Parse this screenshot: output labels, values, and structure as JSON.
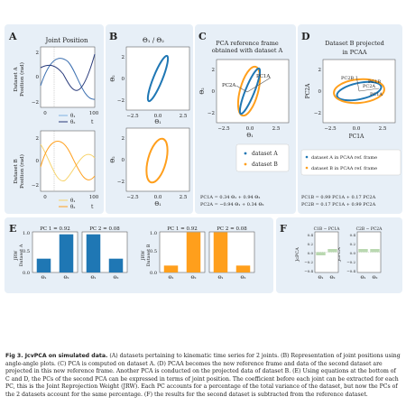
{
  "colors": {
    "blue": "#1f77b4",
    "orange": "#ff9f1c",
    "panel_bg": "#e7eff7",
    "navy": "#283a7a",
    "light_blue": "#7fb2e0",
    "light_orange": "#f7d36a",
    "green": "#b9d8b0"
  },
  "panels": {
    "A": {
      "letter": "A",
      "title": "Joint Position",
      "ylabel_a1": "Dataset A",
      "ylabel_a2": "Position (rad)",
      "ylabel_b1": "Dataset B",
      "ylabel_b2": "Position (rad)",
      "xtick_0": "0",
      "xtick_100": "100",
      "ytick_2": "2",
      "ytick_0": "0",
      "ytick_m2": "−2",
      "legend_1": "θ₁",
      "legend_2": "θ₂",
      "xlabel": "t"
    },
    "B": {
      "letter": "B",
      "title": "Θ₁ / Θ₂",
      "ylabel": "Θ₂",
      "xlabel": "Θ₁",
      "xticks": [
        "−2.5",
        "0.0",
        "2.5"
      ],
      "yticks": [
        "2",
        "0",
        "−2"
      ]
    },
    "C": {
      "letter": "C",
      "title_1": "PCA reference frame",
      "title_2": "obtained with dataset A",
      "pc1": "PC1A",
      "pc2": "PC2A",
      "ylabel": "Θ₂",
      "xlabel": "Θ₁",
      "xticks": [
        "−2.5",
        "0.0",
        "2.5"
      ],
      "yticks": [
        "2",
        "0",
        "−2"
      ],
      "legend_a": "dataset A",
      "legend_b": "dataset B",
      "eq1": "PC1A = 0.34 Θ₁ + 0.94 Θ₂",
      "eq2": "PC2A = −0.94 Θ₁ + 0.34 Θ₂"
    },
    "D": {
      "letter": "D",
      "title_1": "Dataset B projected",
      "title_2": "in PCAA",
      "ylabel": "PC2A",
      "xlabel": "PC1A",
      "xticks": [
        "−2.5",
        "0.0",
        "2.5"
      ],
      "yticks": [
        "2",
        "0",
        "−2"
      ],
      "lbl_pc2b": "PC2B",
      "lbl_pc1b": "PC1B",
      "lbl_pc2a": "PC2A",
      "lbl_pc1a": "PC1A",
      "legend_a": "dataset A in PCAA ref. frame",
      "legend_b": "dataset B in PCAA ref. frame",
      "eq1": "PC1B = 0.99 PC1A + 0.17 PC2A",
      "eq2": "PC2B = 0.17 PC1A + 0.99 PC2A"
    },
    "E": {
      "letter": "E",
      "ylabel_a1": "JRW",
      "ylabel_a2": "Dataset A",
      "ylabel_b1": "JRW",
      "ylabel_b2": "Dataset B",
      "yticks": [
        "1.0",
        "0.5",
        "0.0"
      ],
      "xticks": [
        "Θ₁",
        "Θ₂"
      ]
    },
    "F": {
      "letter": "F",
      "title_1": "C1B − PC1A",
      "title_2": "C2B − PC2A",
      "ylabel_1": "JcPCA",
      "ylabel_2": "JcPCA",
      "yticks": [
        "0.4",
        "0.2",
        "0.0",
        "−0.2",
        "−0.4"
      ],
      "xticks": [
        "Θ₁",
        "Θ₂"
      ]
    }
  },
  "chart_data": [
    {
      "type": "bar",
      "panel": "E",
      "title": "PC 1 = 0.92",
      "categories": [
        "Θ₁",
        "Θ₂"
      ],
      "values": [
        0.34,
        0.94
      ],
      "ylim": [
        0,
        1
      ],
      "color": "blue"
    },
    {
      "type": "bar",
      "panel": "E",
      "title": "PC 2 = 0.08",
      "categories": [
        "Θ₁",
        "Θ₂"
      ],
      "values": [
        0.94,
        0.34
      ],
      "ylim": [
        0,
        1
      ],
      "color": "blue"
    },
    {
      "type": "bar",
      "panel": "E",
      "title": "PC 1 = 0.92",
      "categories": [
        "Θ₁",
        "Θ₂"
      ],
      "values": [
        0.17,
        0.99
      ],
      "ylim": [
        0,
        1
      ],
      "color": "orange"
    },
    {
      "type": "bar",
      "panel": "E",
      "title": "PC 2 = 0.08",
      "categories": [
        "Θ₁",
        "Θ₂"
      ],
      "values": [
        0.99,
        0.17
      ],
      "ylim": [
        0,
        1
      ],
      "color": "orange"
    },
    {
      "type": "bar",
      "panel": "F",
      "title": "C1B − PC1A",
      "categories": [
        "Θ₁",
        "Θ₂"
      ],
      "values": [
        -0.07,
        0.07
      ],
      "ylim": [
        -0.45,
        0.45
      ],
      "color": "green"
    },
    {
      "type": "bar",
      "panel": "F",
      "title": "C2B − PC2A",
      "categories": [
        "Θ₁",
        "Θ₂"
      ],
      "values": [
        0.07,
        0.07
      ],
      "ylim": [
        -0.45,
        0.45
      ],
      "color": "green"
    }
  ],
  "caption": {
    "label": "Fig 3. JcvPCA on simulated data.",
    "text": " (A) datasets pertaining to kinematic time series for 2 joints. (B) Representation of joint positions using angle-angle plots. (C) PCA is computed on dataset A. (D) PCAA becomes the new reference frame and data of the second dataset are projected in this new reference frame. Another PCA is conducted on the projected data of dataset B. (E) Using equations at the bottom of C and D, the PCs of the second PCA can be expressed in terms of joint position. The coefficient before each joint can be extracted for each PC, this is the Joint Reprojection Weight (JRW). Each PC accounts for a percentage of the total variance of the dataset, but now the PCs of the 2 datasets account for the same percentage. (F) the results for the second dataset is subtracted from the reference dataset."
  }
}
